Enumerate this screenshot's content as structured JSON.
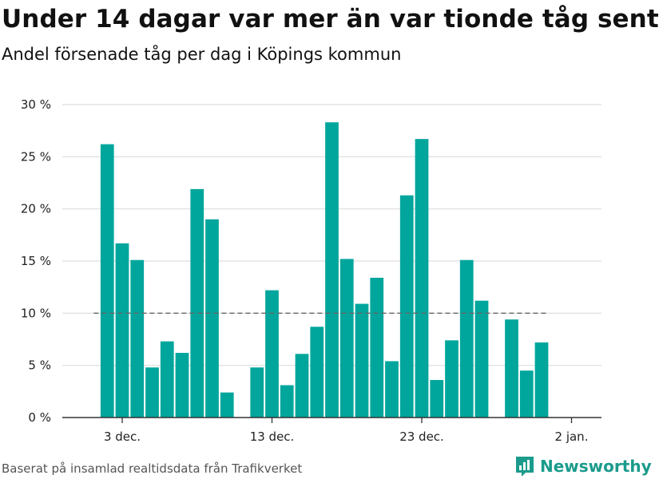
{
  "title": "Under 14 dagar var mer än var tionde tåg sent",
  "subtitle": "Andel försenade tåg per dag i Köpings kommun",
  "source": "Baserat på insamlad realtidsdata från Trafikverket",
  "brand": "Newsworthy",
  "colors": {
    "bar": "#00a69c",
    "reference_line": "#666666",
    "grid": "#dddddd",
    "axis": "#333333",
    "brand": "#1a9b8c"
  },
  "chart_data": {
    "type": "bar",
    "x": [
      "2022-12-02",
      "2022-12-03",
      "2022-12-04",
      "2022-12-05",
      "2022-12-06",
      "2022-12-07",
      "2022-12-08",
      "2022-12-09",
      "2022-12-10",
      "2022-12-11",
      "2022-12-12",
      "2022-12-13",
      "2022-12-14",
      "2022-12-15",
      "2022-12-16",
      "2022-12-17",
      "2022-12-18",
      "2022-12-19",
      "2022-12-20",
      "2022-12-21",
      "2022-12-22",
      "2022-12-23",
      "2022-12-24",
      "2022-12-25",
      "2022-12-26",
      "2022-12-27",
      "2022-12-28",
      "2022-12-29",
      "2022-12-30",
      "2022-12-31"
    ],
    "values": [
      26.2,
      16.7,
      15.1,
      4.8,
      7.3,
      6.2,
      21.9,
      19.0,
      2.4,
      null,
      4.8,
      12.2,
      3.1,
      6.1,
      8.7,
      28.3,
      15.2,
      10.9,
      13.4,
      5.4,
      21.3,
      26.7,
      3.6,
      7.4,
      15.1,
      11.2,
      null,
      9.4,
      4.5,
      7.2
    ],
    "reference_value": 10,
    "ylim": [
      0,
      30
    ],
    "yticks": [
      0,
      5,
      10,
      15,
      20,
      25,
      30
    ],
    "ytick_labels": [
      "0 %",
      "5 %",
      "10 %",
      "15 %",
      "20 %",
      "25 %",
      "30 %"
    ],
    "xticks": [
      "2022-12-03",
      "2022-12-13",
      "2022-12-23",
      "2023-01-02"
    ],
    "xtick_labels": [
      "3 dec.",
      "13 dec.",
      "23 dec.",
      "2 jan."
    ],
    "grid": true
  }
}
